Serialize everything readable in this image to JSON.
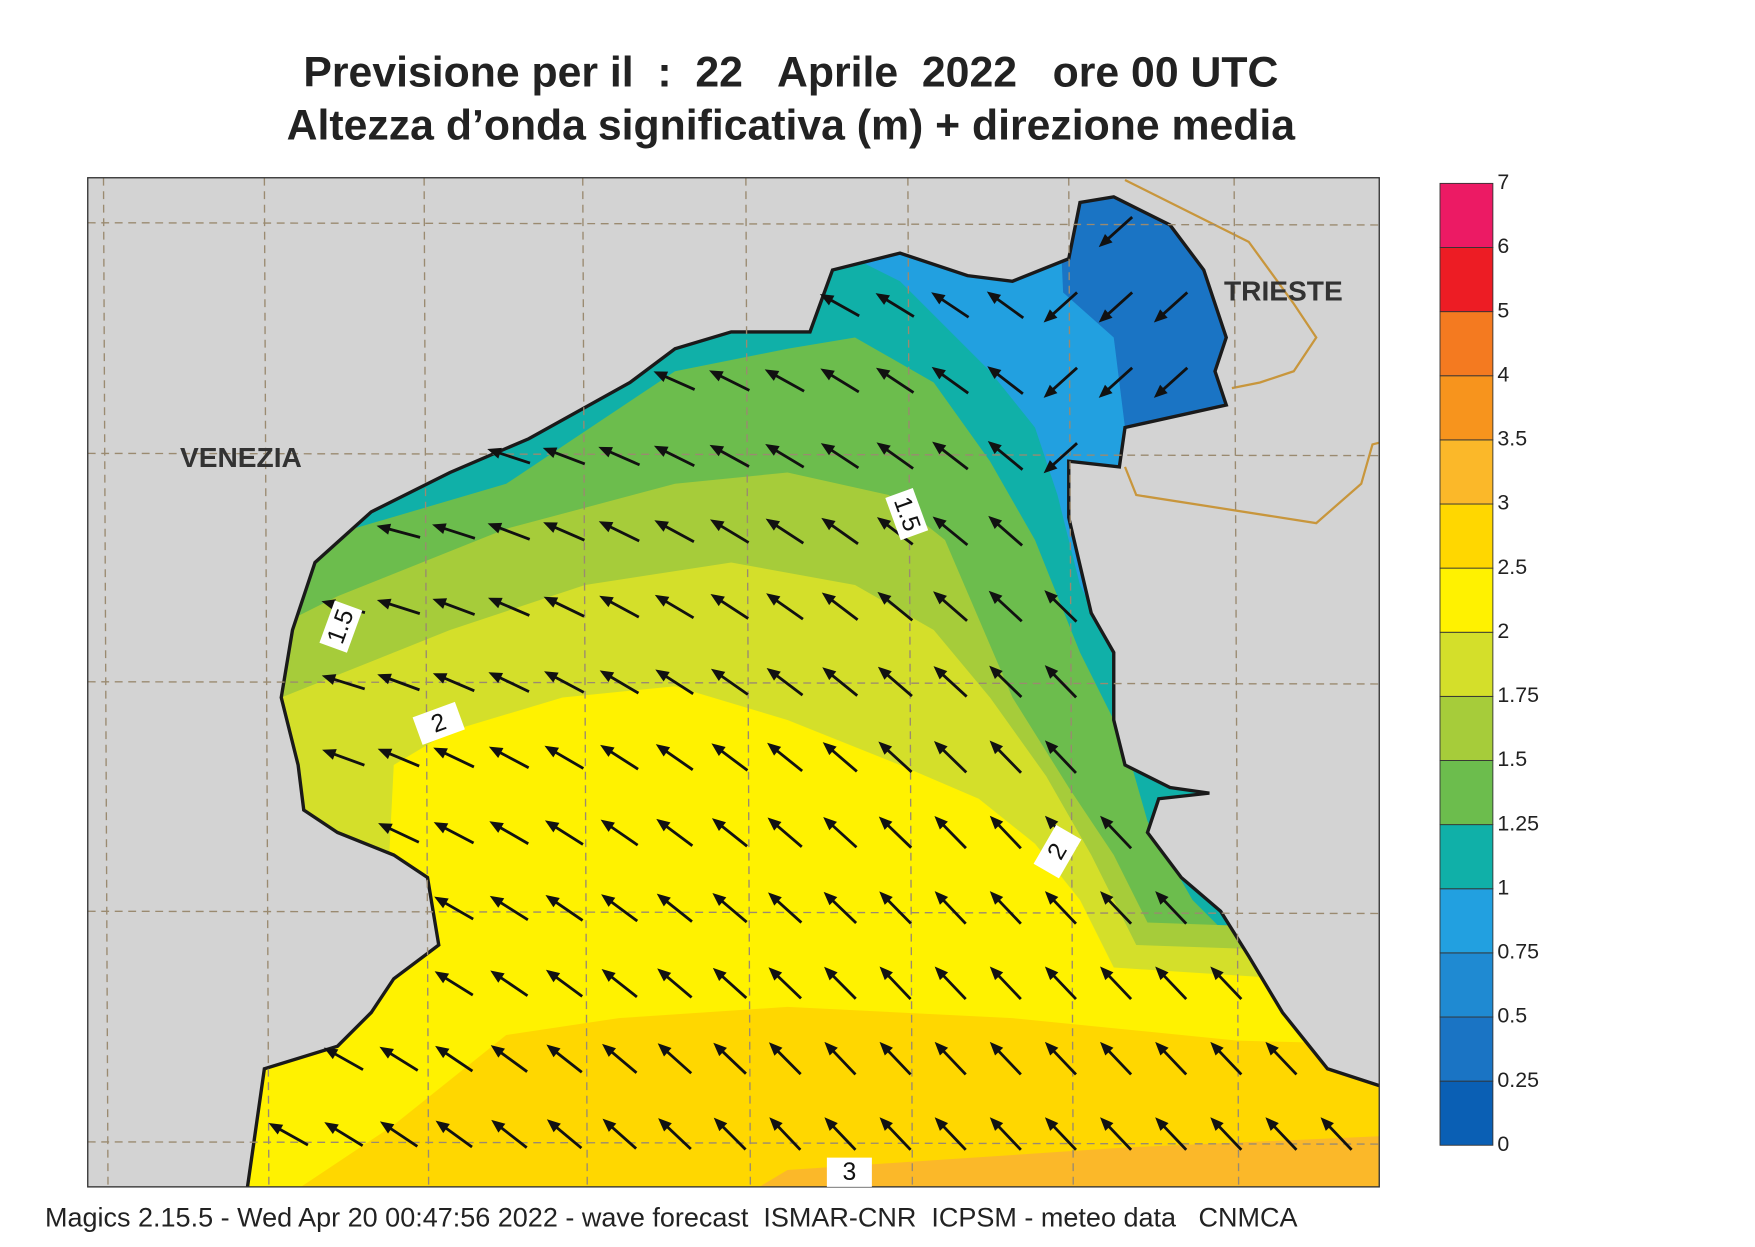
{
  "title": [
    "Previsione per il  :  22   Aprile  2022   ore 00 UTC",
    "Altezza d’onda significativa (m) + direzione media"
  ],
  "places": [
    "VENEZIA",
    "TRIESTE"
  ],
  "contour_labels": [
    "1.5",
    "1.5",
    "2",
    "2",
    "3"
  ],
  "colorbar": {
    "levels": [
      0,
      0.25,
      0.5,
      0.75,
      1,
      1.25,
      1.5,
      1.75,
      2,
      2.5,
      3,
      3.5,
      4,
      5,
      6,
      7
    ],
    "colors": [
      "#0a5fb4",
      "#1a74c4",
      "#1f8ad2",
      "#22a0e0",
      "#10b0a8",
      "#6cbd4d",
      "#a6cc3a",
      "#d4df2a",
      "#fff200",
      "#ffd700",
      "#fbb829",
      "#f7941d",
      "#f47a20",
      "#ed1c24",
      "#ec1a64"
    ]
  },
  "footer": "Magics 2.15.5 - Wed Apr 20 00:47:56 2022 - wave forecast  ISMAR-CNR  ICPSM - meteo data   CNMCA"
}
